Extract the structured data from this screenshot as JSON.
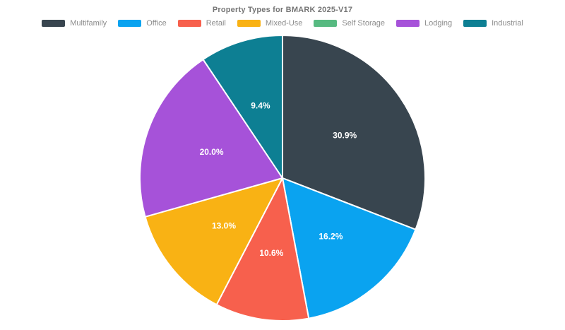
{
  "chart_data": {
    "type": "pie",
    "title": "Property Types for BMARK 2025-V17",
    "legend_position": "top",
    "total": 100.1,
    "series": [
      {
        "name": "Multifamily",
        "value": 30.9,
        "label": "30.9%",
        "color": "#38454F"
      },
      {
        "name": "Office",
        "value": 16.2,
        "label": "16.2%",
        "color": "#0AA3F0"
      },
      {
        "name": "Retail",
        "value": 10.6,
        "label": "10.6%",
        "color": "#F7604D"
      },
      {
        "name": "Mixed-Use",
        "value": 13.0,
        "label": "13.0%",
        "color": "#F9B214"
      },
      {
        "name": "Self Storage",
        "value": 0.0,
        "label": "",
        "color": "#57BA81"
      },
      {
        "name": "Lodging",
        "value": 20.0,
        "label": "20.0%",
        "color": "#A652D9"
      },
      {
        "name": "Industrial",
        "value": 9.4,
        "label": "9.4%",
        "color": "#0D7F93"
      }
    ],
    "style": {
      "background": "#FFFFFF",
      "title_color": "#757575",
      "legend_text_color": "#8C8C8C",
      "slice_border_color": "#FFFFFF",
      "slice_label_color": "#FFFFFF"
    }
  }
}
